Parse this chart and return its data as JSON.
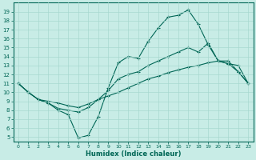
{
  "xlabel": "Humidex (Indice chaleur)",
  "x_ticks": [
    0,
    1,
    2,
    3,
    4,
    5,
    6,
    7,
    8,
    9,
    10,
    11,
    12,
    13,
    14,
    15,
    16,
    17,
    18,
    19,
    20,
    21,
    22,
    23
  ],
  "ylim": [
    4.5,
    20.0
  ],
  "xlim": [
    -0.5,
    23.5
  ],
  "yticks": [
    5,
    6,
    7,
    8,
    9,
    10,
    11,
    12,
    13,
    14,
    15,
    16,
    17,
    18,
    19
  ],
  "bg_color": "#c8ece6",
  "grid_color": "#a8d8d0",
  "line_color": "#006655",
  "line1_x": [
    0,
    1,
    2,
    3,
    4,
    5,
    6,
    7,
    8,
    9,
    10,
    11,
    12,
    13,
    14,
    15,
    16,
    17,
    18,
    19,
    20,
    21,
    22,
    23
  ],
  "line1_y": [
    11.0,
    10.0,
    9.2,
    8.8,
    8.0,
    7.5,
    4.9,
    5.2,
    7.3,
    10.5,
    13.3,
    14.0,
    13.8,
    15.7,
    17.2,
    18.4,
    18.6,
    19.2,
    17.6,
    15.3,
    13.5,
    13.2,
    12.3,
    11.0
  ],
  "line2_x": [
    0,
    1,
    2,
    3,
    4,
    5,
    6,
    7,
    8,
    9,
    10,
    11,
    12,
    13,
    14,
    15,
    16,
    17,
    18,
    19,
    20,
    21,
    22,
    23
  ],
  "line2_y": [
    11.0,
    10.0,
    9.2,
    8.8,
    8.2,
    8.0,
    7.8,
    8.3,
    9.2,
    10.2,
    11.5,
    12.0,
    12.3,
    13.0,
    13.5,
    14.0,
    14.5,
    15.0,
    14.5,
    15.5,
    13.5,
    13.2,
    13.0,
    11.0
  ],
  "line3_x": [
    0,
    1,
    2,
    3,
    4,
    5,
    6,
    7,
    8,
    9,
    10,
    11,
    12,
    13,
    14,
    15,
    16,
    17,
    18,
    19,
    20,
    21,
    22,
    23
  ],
  "line3_y": [
    11.0,
    10.0,
    9.2,
    9.0,
    8.8,
    8.5,
    8.3,
    8.7,
    9.2,
    9.6,
    10.0,
    10.5,
    11.0,
    11.5,
    11.8,
    12.2,
    12.5,
    12.8,
    13.0,
    13.3,
    13.5,
    13.5,
    12.3,
    11.0
  ]
}
